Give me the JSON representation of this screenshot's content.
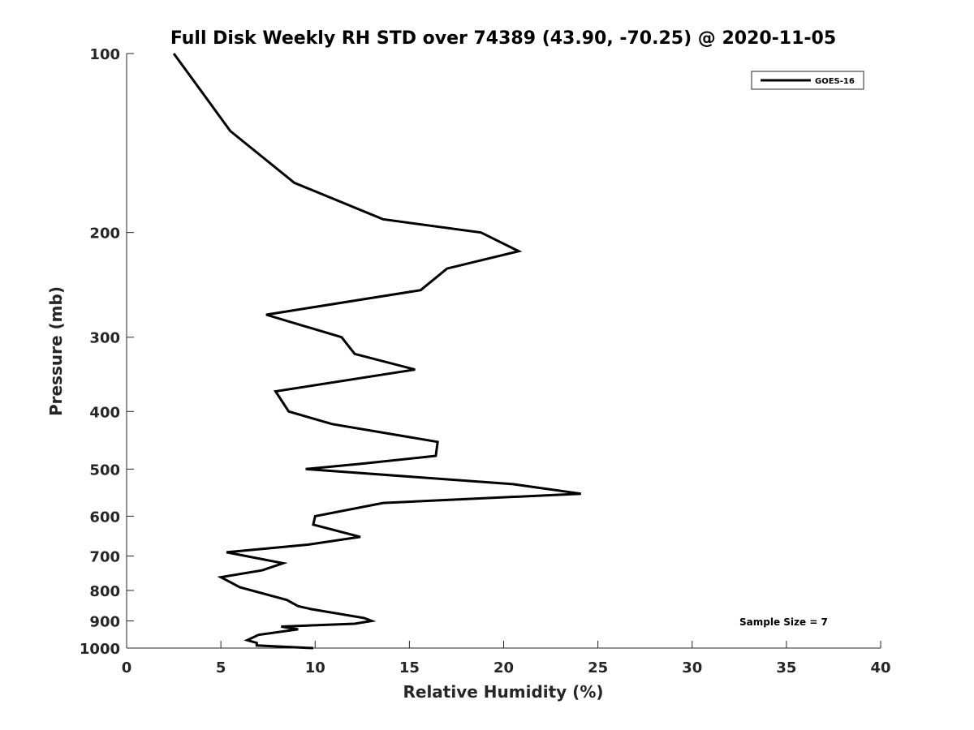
{
  "chart_data": {
    "type": "line",
    "title": "Full Disk Weekly RH STD over 74389 (43.90, -70.25) @ 2020-11-05",
    "xlabel": "Relative Humidity (%)",
    "ylabel": "Pressure (mb)",
    "xlim": [
      0,
      40
    ],
    "ylim": [
      100,
      1000
    ],
    "y_scale": "log",
    "y_reversed": true,
    "x_ticks": [
      0,
      5,
      10,
      15,
      20,
      25,
      30,
      35,
      40
    ],
    "x_tick_labels": [
      "0",
      "5",
      "10",
      "15",
      "20",
      "25",
      "30",
      "35",
      "40"
    ],
    "y_ticks": [
      100,
      200,
      300,
      400,
      500,
      600,
      700,
      800,
      900,
      1000
    ],
    "y_tick_labels": [
      "100",
      "200",
      "300",
      "400",
      "500",
      "600",
      "700",
      "800",
      "900",
      "1000"
    ],
    "grid": false,
    "legend_position": "top-right",
    "annotation": "Sample Size = 7",
    "series": [
      {
        "name": "GOES-16",
        "color": "#000000",
        "x": [
          2.5,
          3.9,
          5.5,
          8.9,
          13.6,
          18.8,
          20.8,
          17.0,
          15.6,
          7.4,
          11.4,
          12.1,
          15.3,
          7.9,
          8.6,
          10.9,
          16.5,
          16.4,
          12.4,
          9.5,
          20.5,
          24.1,
          13.6,
          10.0,
          9.9,
          12.4,
          9.6,
          5.3,
          8.3,
          7.2,
          5.0,
          6.0,
          8.5,
          9.1,
          9.8,
          12.6,
          13.0,
          12.1,
          8.2,
          9.1,
          7.0,
          6.4,
          6.9,
          6.9,
          9.9
        ],
        "y": [
          100,
          115,
          135,
          165,
          190,
          200,
          215,
          230,
          250,
          275,
          300,
          320,
          340,
          370,
          400,
          420,
          450,
          475,
          490,
          500,
          530,
          550,
          570,
          600,
          620,
          650,
          670,
          690,
          720,
          740,
          760,
          790,
          830,
          850,
          860,
          890,
          900,
          910,
          920,
          930,
          950,
          970,
          980,
          990,
          1000
        ]
      }
    ]
  }
}
